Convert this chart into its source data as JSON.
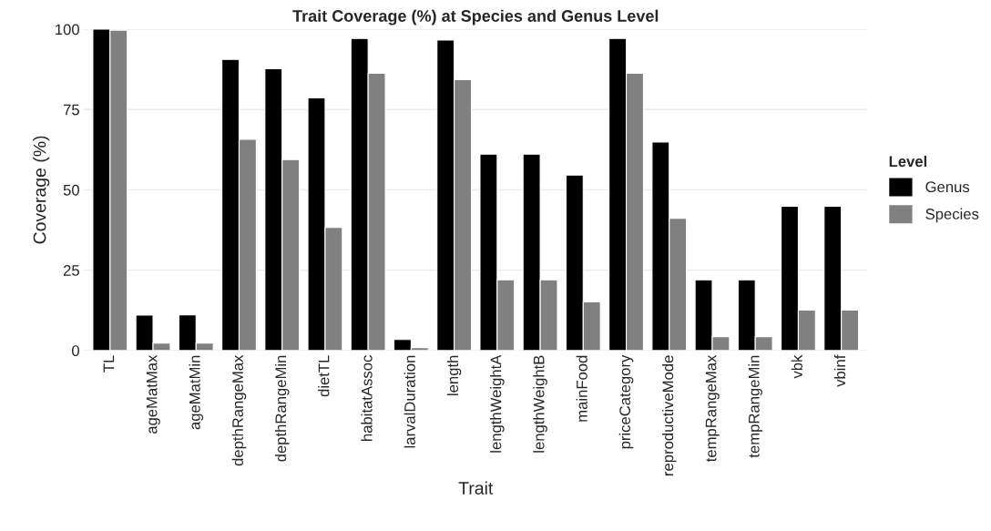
{
  "chart_data": {
    "type": "bar",
    "title": "Trait Coverage (%) at Species and Genus Level",
    "xlabel": "Trait",
    "ylabel": "Coverage (%)",
    "legend_title": "Level",
    "categories": [
      "TL",
      "ageMatMax",
      "ageMatMin",
      "depthRangeMax",
      "depthRangeMin",
      "dietTL",
      "habitatAssoc",
      "larvalDuration",
      "length",
      "lengthWeightA",
      "lengthWeightB",
      "mainFood",
      "priceCategory",
      "reproductiveMode",
      "tempRangeMax",
      "tempRangeMin",
      "vbk",
      "vbinf"
    ],
    "series": [
      {
        "name": "Genus",
        "color": "#000000",
        "values": [
          100,
          11,
          11.1,
          90.6,
          87.7,
          78.6,
          97.1,
          3.4,
          96.6,
          61.1,
          61.1,
          54.6,
          97.1,
          64.9,
          22,
          22,
          44.9,
          44.9
        ]
      },
      {
        "name": "Species",
        "color": "#808080",
        "values": [
          99.7,
          2.3,
          2.3,
          65.7,
          59.4,
          38.3,
          86.3,
          0.9,
          84.3,
          22,
          22,
          15.1,
          86.3,
          41.1,
          4.3,
          4.3,
          12.6,
          12.6
        ]
      }
    ],
    "ylim": [
      0,
      100
    ],
    "yticks": [
      0,
      25,
      50,
      75,
      100
    ],
    "grid": "y",
    "legend": "right"
  }
}
